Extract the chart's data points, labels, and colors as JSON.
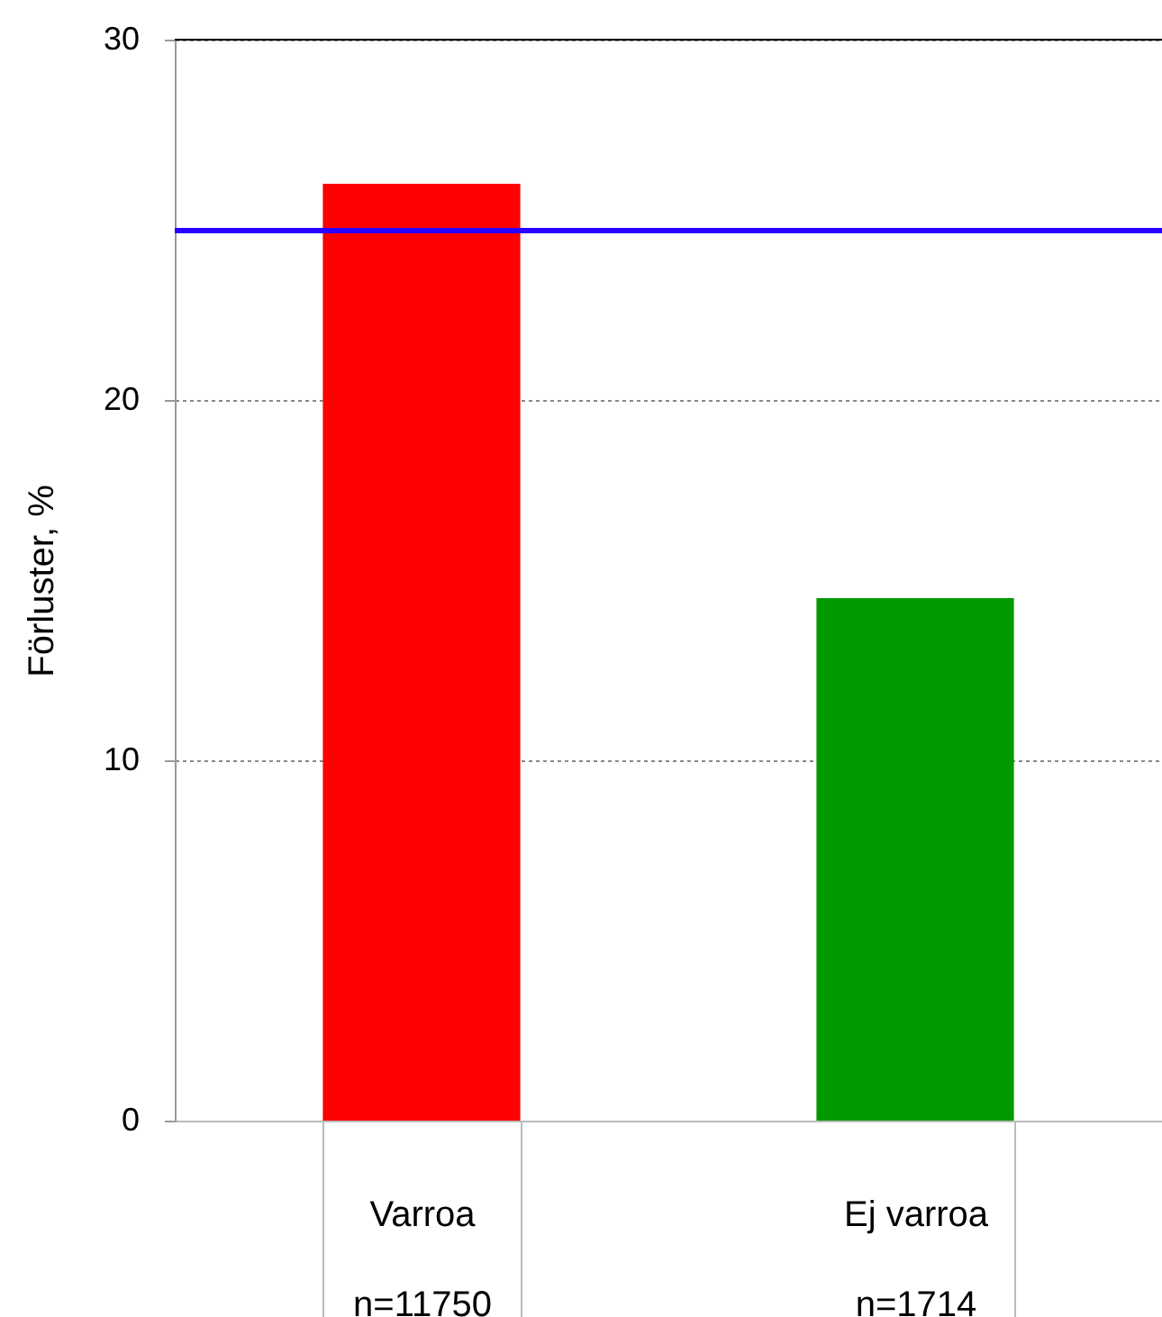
{
  "chart_data": {
    "type": "bar",
    "ylabel": "Förluster, %",
    "categories": [
      "Varroa\nn=11750",
      "Ej varroa\nn=1714"
    ],
    "values": [
      26,
      14.5
    ],
    "colors": [
      "#ff0000",
      "#009900"
    ],
    "ylim": [
      0,
      30
    ],
    "yticks": [
      0,
      10,
      20,
      30
    ],
    "grid": "y",
    "legend": false,
    "ref_lines": [
      {
        "axis": "y",
        "value": 24.7,
        "color": "#2a00ff"
      }
    ]
  }
}
